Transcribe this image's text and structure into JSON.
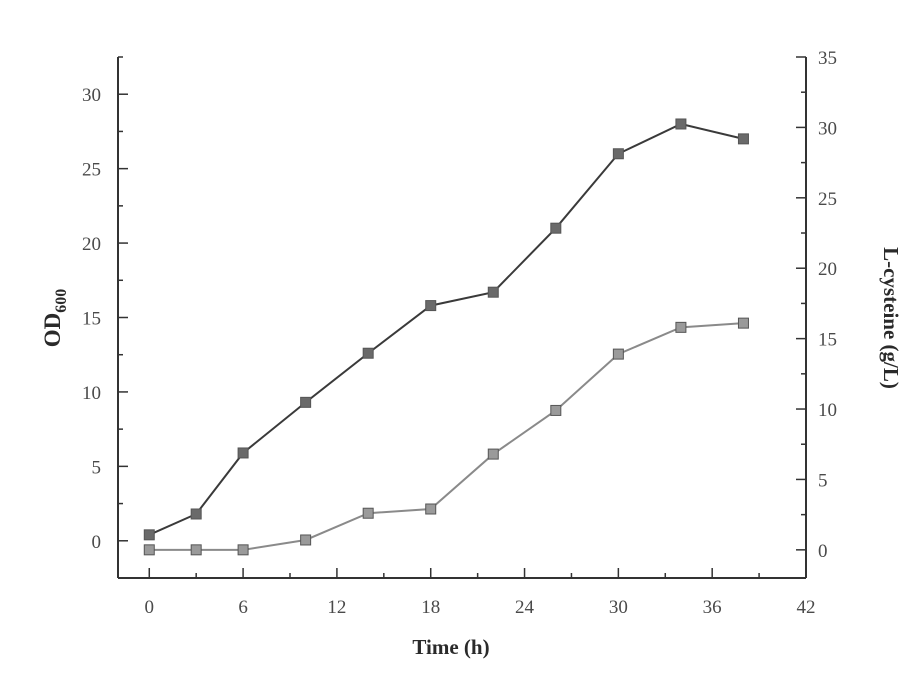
{
  "chart_data": {
    "type": "line",
    "x_label": "Time (h)",
    "y_left_label_main": "OD",
    "y_left_label_sub": "600",
    "y_right_label": "L-cysteine (g/L)",
    "x_ticks": [
      0,
      6,
      12,
      18,
      24,
      30,
      36,
      42
    ],
    "y_left_ticks": [
      0,
      5,
      10,
      15,
      20,
      25,
      30
    ],
    "y_right_ticks": [
      0,
      5,
      10,
      15,
      20,
      25,
      30,
      35
    ],
    "xlim": [
      -2,
      42
    ],
    "y_left_lim": [
      -2.5,
      32.5
    ],
    "y_right_lim": [
      -2,
      35
    ],
    "colors": {
      "od600": "#3a3a3a",
      "cysteine": "#8a8a8a"
    },
    "series": [
      {
        "axis": "left",
        "x": [
          0,
          3,
          6,
          10,
          14,
          18,
          22,
          26,
          30,
          34,
          38
        ],
        "values": [
          0.4,
          1.8,
          5.9,
          9.3,
          12.6,
          15.8,
          16.7,
          21.0,
          26.0,
          28.0,
          27.0
        ]
      },
      {
        "axis": "right",
        "x": [
          0,
          3,
          6,
          10,
          14,
          18,
          22,
          26,
          30,
          34,
          38
        ],
        "values": [
          0.0,
          0.0,
          0.0,
          0.7,
          2.6,
          2.9,
          6.8,
          9.9,
          13.9,
          15.8,
          16.1
        ]
      }
    ]
  }
}
